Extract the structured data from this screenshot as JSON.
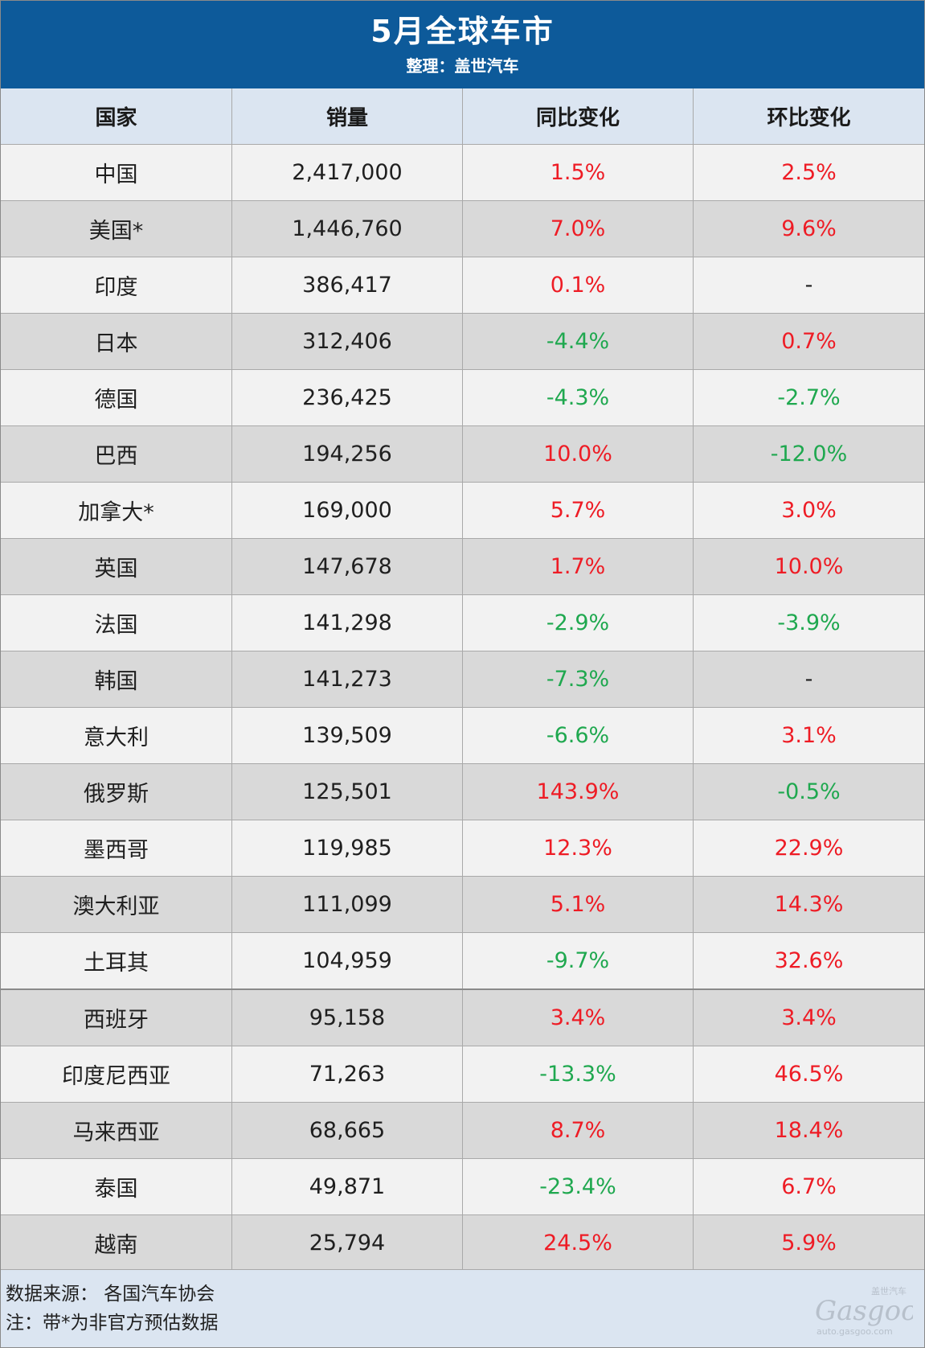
{
  "header": {
    "title": "5月全球车市",
    "subtitle": "整理：盖世汽车"
  },
  "table": {
    "columns": [
      "国家",
      "销量",
      "同比变化",
      "环比变化"
    ],
    "rows": [
      {
        "country": "中国",
        "sales": "2,417,000",
        "yoy": "1.5%",
        "mom": "2.5%"
      },
      {
        "country": "美国*",
        "sales": "1,446,760",
        "yoy": "7.0%",
        "mom": "9.6%"
      },
      {
        "country": "印度",
        "sales": "386,417",
        "yoy": "0.1%",
        "mom": "-"
      },
      {
        "country": "日本",
        "sales": "312,406",
        "yoy": "-4.4%",
        "mom": "0.7%"
      },
      {
        "country": "德国",
        "sales": "236,425",
        "yoy": "-4.3%",
        "mom": "-2.7%"
      },
      {
        "country": "巴西",
        "sales": "194,256",
        "yoy": "10.0%",
        "mom": "-12.0%"
      },
      {
        "country": "加拿大*",
        "sales": "169,000",
        "yoy": "5.7%",
        "mom": "3.0%"
      },
      {
        "country": "英国",
        "sales": "147,678",
        "yoy": "1.7%",
        "mom": "10.0%"
      },
      {
        "country": "法国",
        "sales": "141,298",
        "yoy": "-2.9%",
        "mom": "-3.9%"
      },
      {
        "country": "韩国",
        "sales": "141,273",
        "yoy": "-7.3%",
        "mom": "-"
      },
      {
        "country": "意大利",
        "sales": "139,509",
        "yoy": "-6.6%",
        "mom": "3.1%"
      },
      {
        "country": "俄罗斯",
        "sales": "125,501",
        "yoy": "143.9%",
        "mom": "-0.5%"
      },
      {
        "country": "墨西哥",
        "sales": "119,985",
        "yoy": "12.3%",
        "mom": "22.9%"
      },
      {
        "country": "澳大利亚",
        "sales": "111,099",
        "yoy": "5.1%",
        "mom": "14.3%"
      },
      {
        "country": "土耳其",
        "sales": "104,959",
        "yoy": "-9.7%",
        "mom": "32.6%"
      },
      {
        "country": "西班牙",
        "sales": "95,158",
        "yoy": "3.4%",
        "mom": "3.4%"
      },
      {
        "country": "印度尼西亚",
        "sales": "71,263",
        "yoy": "-13.3%",
        "mom": "46.5%"
      },
      {
        "country": "马来西亚",
        "sales": "68,665",
        "yoy": "8.7%",
        "mom": "18.4%"
      },
      {
        "country": "泰国",
        "sales": "49,871",
        "yoy": "-23.4%",
        "mom": "6.7%"
      },
      {
        "country": "越南",
        "sales": "25,794",
        "yoy": "24.5%",
        "mom": "5.9%"
      }
    ]
  },
  "footer": {
    "source": "数据来源： 各国汽车协会",
    "note": "注：带*为非官方预估数据"
  },
  "watermark": {
    "brand_cn": "盖世汽车",
    "brand": "Gasgoo",
    "url": "auto.gasgoo.com"
  },
  "colors": {
    "header_bg": "#0d5a9a",
    "increase": "#ee1c25",
    "decrease": "#1fa84f"
  }
}
